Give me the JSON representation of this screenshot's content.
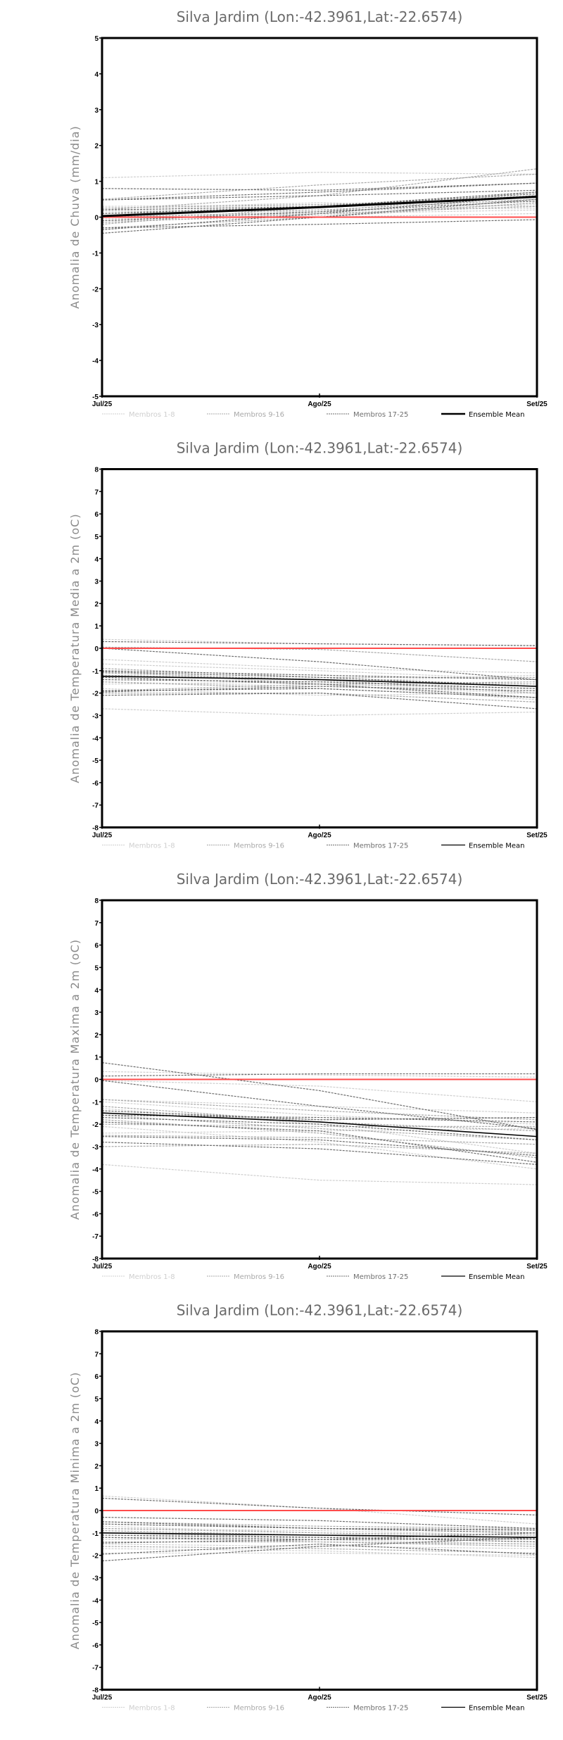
{
  "colors": {
    "members_1_8": "#cfcfcf",
    "members_9_16": "#a8a8a8",
    "members_17_25": "#6e6e6e",
    "ensemble_mean": "#000000",
    "zero_line": "#ff4b4b"
  },
  "chart_data": [
    {
      "type": "line",
      "title": "Silva Jardim (Lon:-42.3961,Lat:-22.6574)",
      "ylabel": "Anomalia de Chuva (mm/dia)",
      "xlabel": "",
      "categories": [
        "Jul/25",
        "Ago/25",
        "Set/25"
      ],
      "ylim": [
        -5,
        5
      ],
      "yticks": [
        "-5",
        "-4",
        "-3",
        "-2",
        "-1",
        "0",
        "1",
        "2",
        "3",
        "4",
        "5"
      ],
      "legend": [
        "Membros 1-8",
        "Membros 9-16",
        "Membros 17-25",
        "Ensemble Mean"
      ],
      "legend_position": "bottom",
      "mean_thick": true,
      "series": [
        {
          "group": "Membros 1-8",
          "members": [
            [
              1.1,
              1.25,
              1.2
            ],
            [
              0.25,
              0.4,
              0.3
            ],
            [
              0.15,
              0.2,
              0.25
            ],
            [
              0.0,
              0.1,
              0.2
            ],
            [
              -0.1,
              0.0,
              0.1
            ],
            [
              0.3,
              0.35,
              0.45
            ],
            [
              0.2,
              0.15,
              0.35
            ],
            [
              -0.05,
              0.05,
              0.4
            ]
          ]
        },
        {
          "group": "Membros 9-16",
          "members": [
            [
              0.5,
              0.9,
              1.2
            ],
            [
              0.2,
              0.6,
              1.35
            ],
            [
              -0.2,
              0.3,
              0.6
            ],
            [
              0.1,
              0.2,
              0.5
            ],
            [
              -0.3,
              0.0,
              0.4
            ],
            [
              0.25,
              0.35,
              0.55
            ],
            [
              0.0,
              0.15,
              0.7
            ],
            [
              -0.15,
              0.1,
              0.3
            ]
          ]
        },
        {
          "group": "Membros 17-25",
          "members": [
            [
              0.8,
              0.75,
              0.95
            ],
            [
              0.48,
              0.6,
              0.75
            ],
            [
              0.48,
              0.7,
              0.95
            ],
            [
              -0.3,
              -0.2,
              -0.07
            ],
            [
              -0.35,
              0.1,
              0.6
            ],
            [
              -0.45,
              0.0,
              0.5
            ],
            [
              0.2,
              0.3,
              0.65
            ],
            [
              -0.1,
              0.15,
              0.45
            ],
            [
              0.1,
              0.3,
              0.7
            ]
          ]
        },
        {
          "group": "Ensemble Mean",
          "values": [
            0.03,
            0.28,
            0.57
          ]
        }
      ]
    },
    {
      "type": "line",
      "title": "Silva Jardim (Lon:-42.3961,Lat:-22.6574)",
      "ylabel": "Anomalia de Temperatura Media a 2m (oC)",
      "xlabel": "",
      "categories": [
        "Jul/25",
        "Ago/25",
        "Set/25"
      ],
      "ylim": [
        -8,
        8
      ],
      "yticks": [
        "-8",
        "-7",
        "-6",
        "-5",
        "-4",
        "-3",
        "-2",
        "-1",
        "0",
        "1",
        "2",
        "3",
        "4",
        "5",
        "6",
        "7",
        "8"
      ],
      "legend": [
        "Membros 1-8",
        "Membros 9-16",
        "Membros 17-25",
        "Ensemble Mean"
      ],
      "legend_position": "bottom",
      "mean_thick": false,
      "series": [
        {
          "group": "Membros 1-8",
          "members": [
            [
              0.4,
              0.2,
              0.1
            ],
            [
              -0.5,
              -0.9,
              -1.1
            ],
            [
              -0.7,
              -1.0,
              -1.4
            ],
            [
              -1.5,
              -1.7,
              -2.0
            ],
            [
              -2.7,
              -3.0,
              -2.85
            ],
            [
              -1.6,
              -1.5,
              -1.2
            ],
            [
              -1.0,
              -1.6,
              -2.3
            ],
            [
              -1.8,
              -2.1,
              -2.0
            ]
          ]
        },
        {
          "group": "Membros 9-16",
          "members": [
            [
              0.05,
              -0.05,
              -0.6
            ],
            [
              -0.9,
              -1.3,
              -1.3
            ],
            [
              -1.3,
              -1.6,
              -1.8
            ],
            [
              -1.9,
              -1.6,
              -1.5
            ],
            [
              -1.1,
              -1.4,
              -2.0
            ],
            [
              -1.5,
              -1.8,
              -2.2
            ],
            [
              -1.2,
              -1.4,
              -1.6
            ],
            [
              -2.0,
              -2.0,
              -2.4
            ]
          ]
        },
        {
          "group": "Membros 17-25",
          "members": [
            [
              0.3,
              0.2,
              0.12
            ],
            [
              0.0,
              -0.6,
              -1.4
            ],
            [
              -1.05,
              -1.3,
              -1.7
            ],
            [
              -1.9,
              -1.8,
              -2.2
            ],
            [
              -2.1,
              -2.0,
              -2.7
            ],
            [
              -1.4,
              -1.5,
              -1.8
            ],
            [
              -1.0,
              -1.2,
              -1.4
            ],
            [
              -1.95,
              -1.7,
              -1.9
            ],
            [
              -1.3,
              -1.6,
              -2.2
            ]
          ]
        },
        {
          "group": "Ensemble Mean",
          "values": [
            -1.25,
            -1.4,
            -1.7
          ]
        }
      ]
    },
    {
      "type": "line",
      "title": "Silva Jardim (Lon:-42.3961,Lat:-22.6574)",
      "ylabel": "Anomalia de Temperatura Maxima a 2m (oC)",
      "xlabel": "",
      "categories": [
        "Jul/25",
        "Ago/25",
        "Set/25"
      ],
      "ylim": [
        -8,
        8
      ],
      "yticks": [
        "-8",
        "-7",
        "-6",
        "-5",
        "-4",
        "-3",
        "-2",
        "-1",
        "0",
        "1",
        "2",
        "3",
        "4",
        "5",
        "6",
        "7",
        "8"
      ],
      "legend": [
        "Membros 1-8",
        "Membros 9-16",
        "Membros 17-25",
        "Ensemble Mean"
      ],
      "legend_position": "bottom",
      "mean_thick": false,
      "series": [
        {
          "group": "Membros 1-8",
          "members": [
            [
              0.35,
              0.2,
              0.1
            ],
            [
              -0.05,
              -0.3,
              -1.0
            ],
            [
              -0.9,
              -1.2,
              -1.5
            ],
            [
              -3.8,
              -4.5,
              -4.7
            ],
            [
              -2.4,
              -2.3,
              -2.2
            ],
            [
              -1.3,
              -2.0,
              -3.3
            ],
            [
              -2.1,
              -2.8,
              -4.0
            ],
            [
              -1.0,
              -1.6,
              -2.0
            ]
          ]
        },
        {
          "group": "Membros 9-16",
          "members": [
            [
              -0.9,
              -1.4,
              -1.8
            ],
            [
              -1.2,
              -1.9,
              -2.3
            ],
            [
              -2.5,
              -2.6,
              -2.9
            ],
            [
              -1.5,
              -1.8,
              -1.7
            ],
            [
              -1.8,
              -2.4,
              -3.5
            ],
            [
              -2.0,
              -2.1,
              -2.1
            ],
            [
              -1.6,
              -2.2,
              -2.7
            ],
            [
              -3.0,
              -2.9,
              -3.3
            ]
          ]
        },
        {
          "group": "Membros 17-25",
          "members": [
            [
              0.75,
              -0.5,
              -2.25
            ],
            [
              0.15,
              0.25,
              0.25
            ],
            [
              -0.05,
              -1.2,
              -2.2
            ],
            [
              -2.8,
              -3.1,
              -3.8
            ],
            [
              -2.55,
              -2.7,
              -3.4
            ],
            [
              -1.4,
              -1.8,
              -1.7
            ],
            [
              -1.9,
              -2.3,
              -3.7
            ],
            [
              -1.7,
              -2.0,
              -2.7
            ],
            [
              -1.6,
              -1.7,
              -1.9
            ]
          ]
        },
        {
          "group": "Ensemble Mean",
          "values": [
            -1.5,
            -1.9,
            -2.55
          ]
        }
      ]
    },
    {
      "type": "line",
      "title": "Silva Jardim (Lon:-42.3961,Lat:-22.6574)",
      "ylabel": "Anomalia de Temperatura Minima a 2m (oC)",
      "xlabel": "",
      "categories": [
        "Jul/25",
        "Ago/25",
        "Set/25"
      ],
      "ylim": [
        -8,
        8
      ],
      "yticks": [
        "-8",
        "-7",
        "-6",
        "-5",
        "-4",
        "-3",
        "-2",
        "-1",
        "0",
        "1",
        "2",
        "3",
        "4",
        "5",
        "6",
        "7",
        "8"
      ],
      "legend": [
        "Membros 1-8",
        "Membros 9-16",
        "Membros 17-25",
        "Ensemble Mean"
      ],
      "legend_position": "bottom",
      "mean_thick": false,
      "series": [
        {
          "group": "Membros 1-8",
          "members": [
            [
              0.65,
              0.1,
              -0.6
            ],
            [
              -0.8,
              -0.9,
              -1.1
            ],
            [
              -1.7,
              -1.8,
              -2.1
            ],
            [
              -1.9,
              -1.9,
              -2.0
            ],
            [
              -1.5,
              -1.6,
              -1.7
            ],
            [
              -0.7,
              -1.0,
              -1.3
            ],
            [
              -1.1,
              -1.3,
              -1.5
            ],
            [
              -1.3,
              -1.2,
              -1.0
            ]
          ]
        },
        {
          "group": "Membros 9-16",
          "members": [
            [
              -0.6,
              -0.8,
              -0.9
            ],
            [
              -1.2,
              -1.4,
              -1.5
            ],
            [
              -0.9,
              -1.1,
              -1.2
            ],
            [
              -0.5,
              -0.7,
              -0.8
            ],
            [
              -1.4,
              -1.4,
              -1.6
            ],
            [
              -1.0,
              -1.2,
              -1.3
            ],
            [
              -1.6,
              -1.7,
              -1.9
            ],
            [
              -0.8,
              -1.0,
              -1.1
            ]
          ]
        },
        {
          "group": "Membros 17-25",
          "members": [
            [
              0.55,
              0.1,
              -0.2
            ],
            [
              -0.3,
              -0.45,
              -0.8
            ],
            [
              -2.25,
              -1.6,
              -1.2
            ],
            [
              -1.95,
              -1.5,
              -1.95
            ],
            [
              -1.45,
              -1.3,
              -1.0
            ],
            [
              -0.6,
              -0.8,
              -0.85
            ],
            [
              -1.2,
              -1.3,
              -1.25
            ],
            [
              -0.5,
              -0.8,
              -1.0
            ],
            [
              -1.1,
              -1.2,
              -1.4
            ]
          ]
        },
        {
          "group": "Ensemble Mean",
          "values": [
            -1.0,
            -1.1,
            -1.2
          ]
        }
      ]
    }
  ]
}
